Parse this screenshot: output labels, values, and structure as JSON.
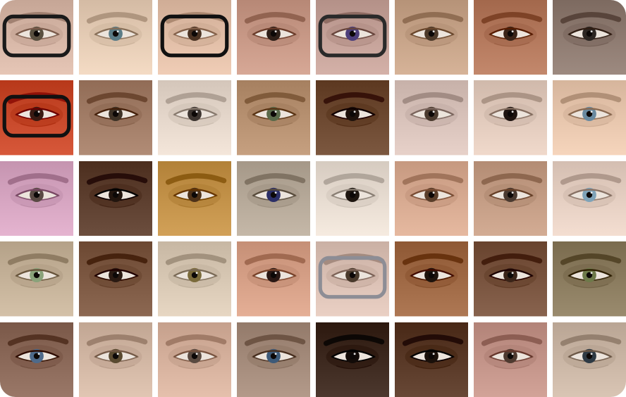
{
  "mosaic": {
    "columns": 8,
    "rows": 5,
    "tiles": [
      {
        "skin": "#d8b8a8",
        "iris": "#5a5040",
        "glasses": "#1a1a1a"
      },
      {
        "skin": "#e6cdb6",
        "iris": "#5b7c86",
        "glasses": ""
      },
      {
        "skin": "#e2bfa8",
        "iris": "#4a3222",
        "glasses": "#111111"
      },
      {
        "skin": "#c99a88",
        "iris": "#2e1f18",
        "glasses": ""
      },
      {
        "skin": "#c6a39a",
        "iris": "#4d3f7a",
        "glasses": "#2a2a2a"
      },
      {
        "skin": "#c8a58a",
        "iris": "#4d3a2a",
        "glasses": ""
      },
      {
        "skin": "#b57a5e",
        "iris": "#3a2418",
        "glasses": ""
      },
      {
        "skin": "#8f7c72",
        "iris": "#2c2622",
        "glasses": ""
      },
      {
        "skin": "#c94a2c",
        "iris": "#3a1a12",
        "glasses": "#111111"
      },
      {
        "skin": "#a37e68",
        "iris": "#3e3226",
        "glasses": ""
      },
      {
        "skin": "#e6d8cc",
        "iris": "#3d3530",
        "glasses": ""
      },
      {
        "skin": "#b89272",
        "iris": "#5a6a4a",
        "glasses": ""
      },
      {
        "skin": "#6e4a32",
        "iris": "#1e120c",
        "glasses": ""
      },
      {
        "skin": "#d9c3bb",
        "iris": "#4a3a2e",
        "glasses": ""
      },
      {
        "skin": "#e2cbbd",
        "iris": "#1e1410",
        "glasses": ""
      },
      {
        "skin": "#e8c7ae",
        "iris": "#6a8aa0",
        "glasses": ""
      },
      {
        "skin": "#d7a6c2",
        "iris": "#5a4a44",
        "glasses": ""
      },
      {
        "skin": "#5e4030",
        "iris": "#22150e",
        "glasses": ""
      },
      {
        "skin": "#c4934a",
        "iris": "#4e3218",
        "glasses": ""
      },
      {
        "skin": "#b7aa9a",
        "iris": "#2c2f66",
        "glasses": ""
      },
      {
        "skin": "#e8ddd2",
        "iris": "#1e1610",
        "glasses": ""
      },
      {
        "skin": "#d8ab92",
        "iris": "#5a3e2a",
        "glasses": ""
      },
      {
        "skin": "#c59e86",
        "iris": "#4a3a30",
        "glasses": ""
      },
      {
        "skin": "#e6d0c3",
        "iris": "#7fa3b8",
        "glasses": ""
      },
      {
        "skin": "#c6b39a",
        "iris": "#8aa27a",
        "glasses": ""
      },
      {
        "skin": "#7e5a44",
        "iris": "#2a1a12",
        "glasses": ""
      },
      {
        "skin": "#d9c9b5",
        "iris": "#7a6a3a",
        "glasses": ""
      },
      {
        "skin": "#d7a188",
        "iris": "#2a1814",
        "glasses": ""
      },
      {
        "skin": "#dcc2b6",
        "iris": "#4a3a2c",
        "glasses": "#8d8d95"
      },
      {
        "skin": "#a06a46",
        "iris": "#1e130c",
        "glasses": ""
      },
      {
        "skin": "#7a5540",
        "iris": "#3a2418",
        "glasses": ""
      },
      {
        "skin": "#8c7d60",
        "iris": "#6e7a4a",
        "glasses": ""
      },
      {
        "skin": "#8c6a5a",
        "iris": "#4e6a8a",
        "glasses": ""
      },
      {
        "skin": "#d3b8a5",
        "iris": "#5a4a30",
        "glasses": ""
      },
      {
        "skin": "#d7b29e",
        "iris": "#5a4a40",
        "glasses": ""
      },
      {
        "skin": "#a58c7c",
        "iris": "#3e5a78",
        "glasses": ""
      },
      {
        "skin": "#3e2a20",
        "iris": "#120b08",
        "glasses": ""
      },
      {
        "skin": "#5a3a28",
        "iris": "#1a100a",
        "glasses": ""
      },
      {
        "skin": "#c4958a",
        "iris": "#4e3a30",
        "glasses": ""
      },
      {
        "skin": "#cbb7a6",
        "iris": "#2e3a44",
        "glasses": ""
      }
    ]
  }
}
